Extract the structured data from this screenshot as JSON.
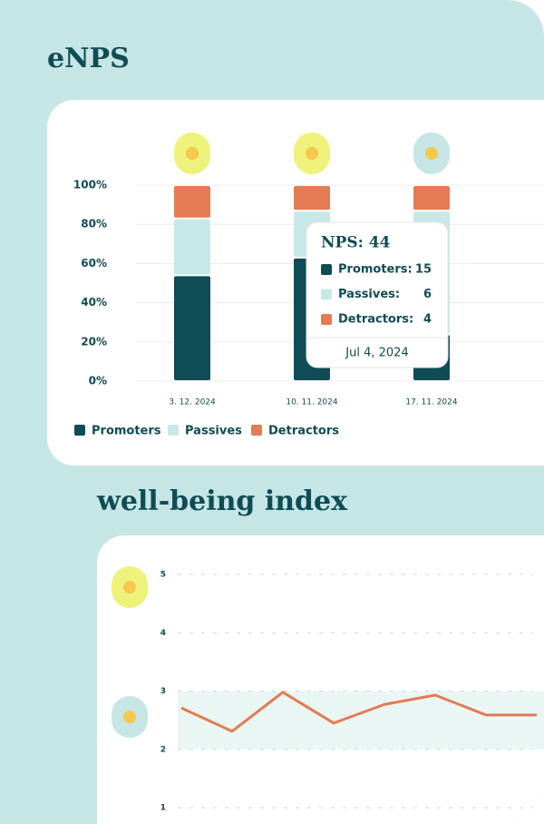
{
  "chart_data": [
    {
      "type": "stacked-bar",
      "title": "eNPS",
      "categories": [
        "3. 12. 2024",
        "10. 11. 2024",
        "17. 11. 2024"
      ],
      "series": [
        {
          "name": "Promoters",
          "color": "#0f4c55",
          "values": [
            54,
            63,
            24
          ]
        },
        {
          "name": "Passives",
          "color": "#c8e8e8",
          "values": [
            29,
            24,
            63
          ]
        },
        {
          "name": "Detractors",
          "color": "#e47b52",
          "values": [
            17,
            13,
            13
          ]
        }
      ],
      "ylim": [
        0,
        100
      ],
      "yticks": [
        {
          "value": 0,
          "label": "0%"
        },
        {
          "value": 20,
          "label": "20%"
        },
        {
          "value": 40,
          "label": "40%"
        },
        {
          "value": 60,
          "label": "60%"
        },
        {
          "value": 80,
          "label": "80%"
        },
        {
          "value": 100,
          "label": "100%"
        }
      ],
      "grid": true,
      "legend": "bottom-left"
    },
    {
      "type": "line",
      "title": "well-being index",
      "categories": [
        null,
        null,
        null,
        null,
        null,
        null,
        null,
        null
      ],
      "values": [
        2.71,
        2.31,
        2.98,
        2.45,
        2.77,
        2.93,
        2.59,
        2.59
      ],
      "color": "#e47b52",
      "ylim": [
        1,
        5
      ],
      "yticks": [
        1,
        2,
        3,
        4,
        5
      ],
      "highlight_range": [
        2,
        3
      ],
      "grid": true
    }
  ],
  "tooltip": {
    "title": "NPS: 44",
    "rows": [
      {
        "label": "Promoters:",
        "value": "15"
      },
      {
        "label": "Passives:",
        "value": "6"
      },
      {
        "label": "Detractors:",
        "value": "4"
      }
    ],
    "date": "Jul 4, 2024"
  }
}
